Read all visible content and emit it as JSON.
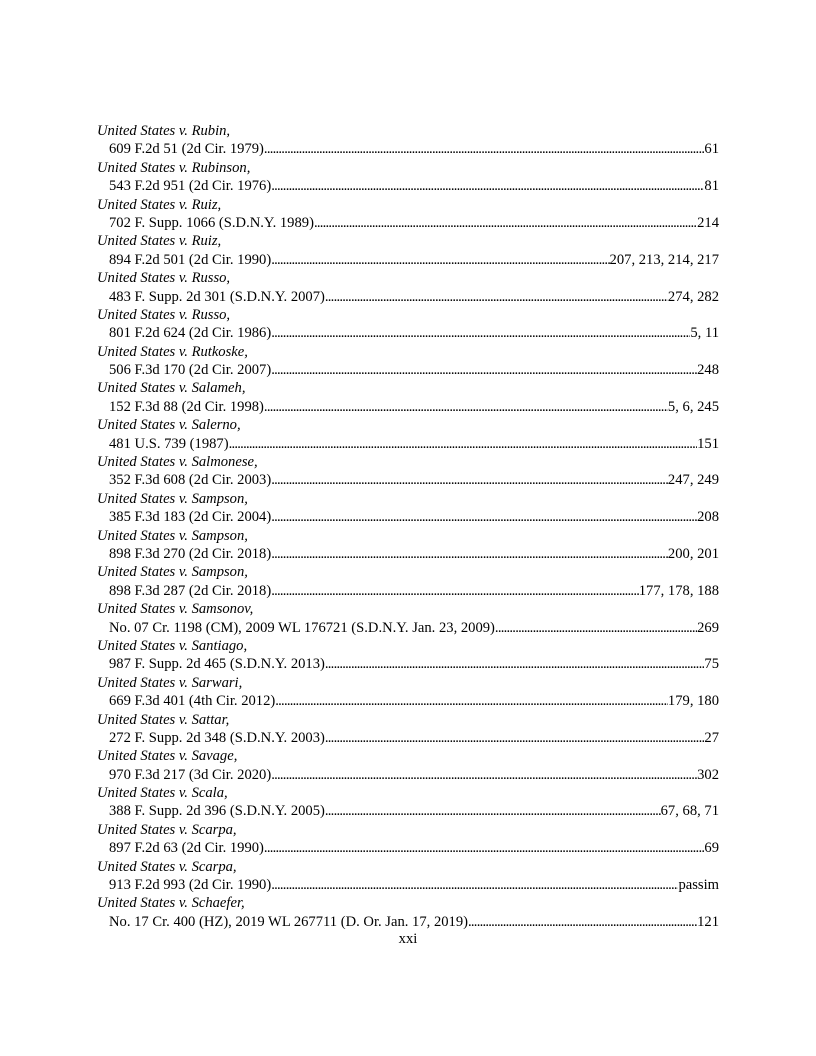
{
  "entries": [
    {
      "case": "United States v. Rubin,",
      "citation": "609 F.2d 51 (2d Cir. 1979)",
      "pages": "61"
    },
    {
      "case": "United States v. Rubinson,",
      "citation": "543 F.2d 951 (2d Cir. 1976)",
      "pages": "81"
    },
    {
      "case": "United States v. Ruiz,",
      "citation": "702 F. Supp. 1066 (S.D.N.Y. 1989)",
      "pages": "214"
    },
    {
      "case": "United States v. Ruiz,",
      "citation": "894 F.2d 501 (2d Cir. 1990)",
      "pages": "207, 213, 214, 217"
    },
    {
      "case": "United States v. Russo,",
      "citation": "483 F. Supp. 2d 301 (S.D.N.Y. 2007)",
      "pages": "274, 282"
    },
    {
      "case": "United States v. Russo,",
      "citation": "801 F.2d 624 (2d Cir. 1986)",
      "pages": "5, 11"
    },
    {
      "case": "United States v. Rutkoske,",
      "citation": "506 F.3d 170 (2d Cir. 2007)",
      "pages": "248"
    },
    {
      "case": "United States v. Salameh,",
      "citation": "152 F.3d 88 (2d Cir. 1998)",
      "pages": "5, 6, 245"
    },
    {
      "case": "United States v. Salerno,",
      "citation": "481 U.S. 739 (1987)",
      "pages": "151"
    },
    {
      "case": "United States v. Salmonese,",
      "citation": "352 F.3d 608 (2d Cir. 2003)",
      "pages": "247, 249"
    },
    {
      "case": "United States v. Sampson,",
      "citation": "385 F.3d 183 (2d Cir. 2004)",
      "pages": "208"
    },
    {
      "case": "United States v. Sampson,",
      "citation": "898 F.3d 270 (2d Cir. 2018)",
      "pages": "200, 201"
    },
    {
      "case": "United States v. Sampson,",
      "citation": "898 F.3d 287 (2d Cir. 2018)",
      "pages": "177, 178, 188"
    },
    {
      "case": "United States v. Samsonov,",
      "citation": "No. 07 Cr. 1198 (CM), 2009 WL 176721 (S.D.N.Y. Jan. 23, 2009)",
      "pages": "269"
    },
    {
      "case": "United States v. Santiago,",
      "citation": "987 F. Supp. 2d 465 (S.D.N.Y. 2013)",
      "pages": "75"
    },
    {
      "case": "United States v. Sarwari,",
      "citation": "669 F.3d 401 (4th Cir. 2012)",
      "pages": "179, 180"
    },
    {
      "case": "United States v. Sattar,",
      "citation": "272 F. Supp. 2d 348 (S.D.N.Y. 2003)",
      "pages": "27"
    },
    {
      "case": "United States v. Savage,",
      "citation": "970 F.3d 217 (3d Cir. 2020)",
      "pages": "302"
    },
    {
      "case": "United States v. Scala,",
      "citation": "388 F. Supp. 2d 396 (S.D.N.Y. 2005)",
      "pages": "67, 68, 71"
    },
    {
      "case": "United States v. Scarpa,",
      "citation": "897 F.2d 63 (2d Cir. 1990)",
      "pages": "69"
    },
    {
      "case": "United States v. Scarpa,",
      "citation": "913 F.2d 993 (2d Cir. 1990)",
      "pages": "passim"
    },
    {
      "case": "United States v. Schaefer,",
      "citation": "No. 17 Cr. 400 (HZ), 2019 WL 267711 (D. Or. Jan. 17, 2019)",
      "pages": "121"
    }
  ],
  "page_number": "xxi"
}
